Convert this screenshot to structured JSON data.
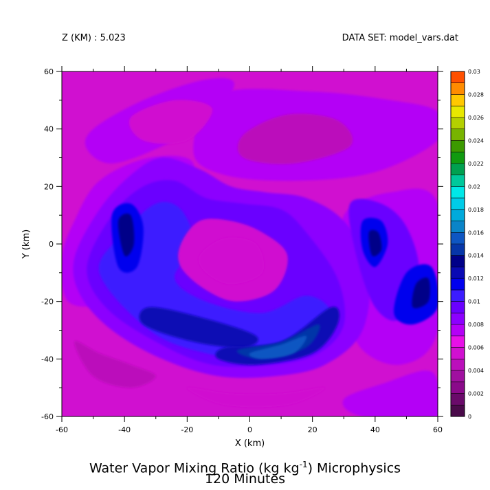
{
  "header": {
    "left": "Z (KM) : 5.023",
    "right": "DATA SET: model_vars.dat"
  },
  "chart_data": {
    "type": "heatmap",
    "title_line1": "Water Vapor Mixing Ratio (kg kg",
    "title_sup": "-1",
    "title_line1_end": ") Microphysics",
    "title_line2": "120 Minutes",
    "xlabel": "X (km)",
    "ylabel": "Y (km)",
    "xlim": [
      -60,
      60
    ],
    "ylim": [
      -60,
      60
    ],
    "x_ticks": [
      -60,
      -40,
      -20,
      0,
      20,
      40,
      60
    ],
    "y_ticks": [
      -60,
      -40,
      -20,
      0,
      20,
      40,
      60
    ],
    "x_tick_labels": [
      "-60",
      "-40",
      "-20",
      "0",
      "20",
      "40",
      "60"
    ],
    "y_tick_labels": [
      "-60",
      "-40",
      "-20",
      "0",
      "20",
      "40",
      "60"
    ],
    "colorbar": {
      "min": 0,
      "max": 0.03,
      "step": 0.001,
      "labels": [
        "0",
        "0.002",
        "0.004",
        "0.006",
        "0.008",
        "0.01",
        "0.012",
        "0.014",
        "0.016",
        "0.018",
        "0.02",
        "0.022",
        "0.024",
        "0.026",
        "0.028",
        "0.03"
      ],
      "colors": [
        "#4a0a4a",
        "#6a0a6a",
        "#8a0a8a",
        "#a010a0",
        "#bb10bb",
        "#d010d0",
        "#e810e8",
        "#b400f6",
        "#8c00ff",
        "#6a00ff",
        "#3c1cff",
        "#0000ee",
        "#0a0ab4",
        "#000088",
        "#0636a8",
        "#0e56c2",
        "#0a84c8",
        "#00aadc",
        "#00cce8",
        "#00e8e8",
        "#00c89c",
        "#00a050",
        "#109a10",
        "#3c9a00",
        "#78b400",
        "#b4d000",
        "#e8e800",
        "#ffc800",
        "#ff8c00",
        "#ff5000"
      ]
    },
    "background_value": 0.0058,
    "features": [
      {
        "name": "upper-right moist band",
        "value": 0.0072,
        "points": [
          [
            -10,
            52
          ],
          [
            20,
            53
          ],
          [
            45,
            50
          ],
          [
            60,
            46
          ],
          [
            60,
            36
          ],
          [
            40,
            25
          ],
          [
            15,
            22
          ],
          [
            -8,
            24
          ],
          [
            -18,
            32
          ]
        ]
      },
      {
        "name": "upper-right dry patch",
        "value": 0.0046,
        "points": [
          [
            -2,
            38
          ],
          [
            12,
            45
          ],
          [
            28,
            43
          ],
          [
            32,
            34
          ],
          [
            14,
            28
          ],
          [
            -2,
            30
          ]
        ]
      },
      {
        "name": "northwest moist arc",
        "value": 0.0074,
        "points": [
          [
            -50,
            40
          ],
          [
            -34,
            50
          ],
          [
            -15,
            57
          ],
          [
            -5,
            56
          ],
          [
            -12,
            44
          ],
          [
            -28,
            34
          ],
          [
            -44,
            28
          ],
          [
            -52,
            33
          ]
        ]
      },
      {
        "name": "northwest dry patch",
        "value": 0.0052,
        "points": [
          [
            -38,
            44
          ],
          [
            -24,
            50
          ],
          [
            -12,
            47
          ],
          [
            -20,
            36
          ],
          [
            -34,
            36
          ]
        ]
      },
      {
        "name": "left moist band",
        "value": 0.0074,
        "points": [
          [
            -58,
            -20
          ],
          [
            -60,
            -5
          ],
          [
            -56,
            8
          ],
          [
            -48,
            22
          ],
          [
            -32,
            30
          ],
          [
            -18,
            28
          ],
          [
            -24,
            10
          ],
          [
            -36,
            -6
          ],
          [
            -46,
            -20
          ]
        ]
      },
      {
        "name": "lower-right moist band",
        "value": 0.0074,
        "points": [
          [
            30,
            10
          ],
          [
            45,
            18
          ],
          [
            60,
            14
          ],
          [
            60,
            -30
          ],
          [
            48,
            -42
          ],
          [
            34,
            -34
          ],
          [
            32,
            -10
          ]
        ]
      },
      {
        "name": "spiral outer",
        "value": 0.0082,
        "points": [
          [
            -56,
            -5
          ],
          [
            -48,
            12
          ],
          [
            -38,
            24
          ],
          [
            -28,
            30
          ],
          [
            -16,
            26
          ],
          [
            -6,
            20
          ],
          [
            5,
            18
          ],
          [
            18,
            16
          ],
          [
            30,
            8
          ],
          [
            38,
            -8
          ],
          [
            36,
            -30
          ],
          [
            24,
            -42
          ],
          [
            8,
            -46
          ],
          [
            -10,
            -46
          ],
          [
            -28,
            -40
          ],
          [
            -44,
            -30
          ],
          [
            -54,
            -18
          ]
        ]
      },
      {
        "name": "spiral mid",
        "value": 0.0092,
        "points": [
          [
            -52,
            -8
          ],
          [
            -44,
            10
          ],
          [
            -34,
            20
          ],
          [
            -24,
            22
          ],
          [
            -14,
            16
          ],
          [
            -2,
            14
          ],
          [
            10,
            12
          ],
          [
            18,
            4
          ],
          [
            28,
            -12
          ],
          [
            30,
            -28
          ],
          [
            22,
            -38
          ],
          [
            8,
            -42
          ],
          [
            -12,
            -42
          ],
          [
            -30,
            -34
          ],
          [
            -46,
            -22
          ]
        ]
      },
      {
        "name": "spiral inner",
        "value": 0.0104,
        "points": [
          [
            -48,
            -10
          ],
          [
            -40,
            4
          ],
          [
            -30,
            14
          ],
          [
            -22,
            12
          ],
          [
            -18,
            0
          ],
          [
            -24,
            -12
          ],
          [
            -14,
            -20
          ],
          [
            4,
            -24
          ],
          [
            18,
            -18
          ],
          [
            26,
            -24
          ],
          [
            22,
            -36
          ],
          [
            6,
            -40
          ],
          [
            -14,
            -38
          ],
          [
            -32,
            -30
          ]
        ]
      },
      {
        "name": "west cell",
        "value": 0.0116,
        "points": [
          [
            -44,
            10
          ],
          [
            -38,
            14
          ],
          [
            -34,
            6
          ],
          [
            -36,
            -8
          ],
          [
            -42,
            -8
          ]
        ]
      },
      {
        "name": "west cell core",
        "value": 0.0132,
        "points": [
          [
            -42,
            8
          ],
          [
            -38,
            10
          ],
          [
            -37,
            0
          ],
          [
            -40,
            -4
          ]
        ]
      },
      {
        "name": "southwest streak",
        "value": 0.0122,
        "points": [
          [
            -32,
            -22
          ],
          [
            -14,
            -26
          ],
          [
            2,
            -32
          ],
          [
            -2,
            -36
          ],
          [
            -18,
            -34
          ],
          [
            -34,
            -28
          ]
        ]
      },
      {
        "name": "south cell",
        "value": 0.0122,
        "points": [
          [
            -8,
            -36
          ],
          [
            10,
            -34
          ],
          [
            26,
            -22
          ],
          [
            28,
            -28
          ],
          [
            20,
            -38
          ],
          [
            2,
            -42
          ],
          [
            -10,
            -40
          ]
        ]
      },
      {
        "name": "south cell core",
        "value": 0.0146,
        "points": [
          [
            -4,
            -37
          ],
          [
            10,
            -34
          ],
          [
            22,
            -28
          ],
          [
            18,
            -36
          ],
          [
            4,
            -40
          ]
        ]
      },
      {
        "name": "south cell peak",
        "value": 0.0152,
        "points": [
          [
            0,
            -38
          ],
          [
            10,
            -35
          ],
          [
            18,
            -32
          ],
          [
            14,
            -38
          ],
          [
            4,
            -40
          ]
        ]
      },
      {
        "name": "east spiral",
        "value": 0.0094,
        "points": [
          [
            32,
            14
          ],
          [
            42,
            14
          ],
          [
            50,
            6
          ],
          [
            54,
            -10
          ],
          [
            48,
            -26
          ],
          [
            40,
            -22
          ],
          [
            34,
            -4
          ]
        ]
      },
      {
        "name": "east cell",
        "value": 0.0118,
        "points": [
          [
            36,
            8
          ],
          [
            42,
            8
          ],
          [
            44,
            0
          ],
          [
            40,
            -8
          ],
          [
            36,
            -2
          ]
        ]
      },
      {
        "name": "east cell core",
        "value": 0.0136,
        "points": [
          [
            38,
            4
          ],
          [
            41,
            4
          ],
          [
            42,
            -2
          ],
          [
            39,
            -4
          ]
        ]
      },
      {
        "name": "southeast cell",
        "value": 0.0118,
        "points": [
          [
            50,
            -10
          ],
          [
            58,
            -8
          ],
          [
            60,
            -22
          ],
          [
            52,
            -28
          ],
          [
            46,
            -24
          ]
        ]
      },
      {
        "name": "southeast cell core",
        "value": 0.0134,
        "points": [
          [
            53,
            -14
          ],
          [
            57,
            -12
          ],
          [
            57,
            -20
          ],
          [
            52,
            -22
          ]
        ]
      },
      {
        "name": "center dry patch",
        "value": 0.0056,
        "points": [
          [
            -22,
            0
          ],
          [
            -16,
            8
          ],
          [
            -6,
            8
          ],
          [
            4,
            4
          ],
          [
            12,
            -4
          ],
          [
            8,
            -16
          ],
          [
            -4,
            -20
          ],
          [
            -14,
            -16
          ],
          [
            -22,
            -8
          ]
        ]
      },
      {
        "name": "center dry core",
        "value": 0.005,
        "points": [
          [
            -16,
            -4
          ],
          [
            -8,
            2
          ],
          [
            2,
            0
          ],
          [
            4,
            -10
          ],
          [
            -6,
            -14
          ],
          [
            -14,
            -10
          ]
        ]
      },
      {
        "name": "southwest dry patch",
        "value": 0.0044,
        "points": [
          [
            -56,
            -34
          ],
          [
            -48,
            -38
          ],
          [
            -38,
            -42
          ],
          [
            -30,
            -46
          ],
          [
            -38,
            -50
          ],
          [
            -50,
            -46
          ]
        ]
      },
      {
        "name": "south dry patch",
        "value": 0.0052,
        "points": [
          [
            -20,
            -50
          ],
          [
            -6,
            -52
          ],
          [
            10,
            -52
          ],
          [
            24,
            -50
          ],
          [
            12,
            -56
          ],
          [
            -8,
            -56
          ]
        ]
      },
      {
        "name": "bottom-right moist band",
        "value": 0.007,
        "points": [
          [
            30,
            -54
          ],
          [
            44,
            -48
          ],
          [
            56,
            -44
          ],
          [
            60,
            -48
          ],
          [
            60,
            -60
          ],
          [
            36,
            -60
          ]
        ]
      }
    ]
  }
}
